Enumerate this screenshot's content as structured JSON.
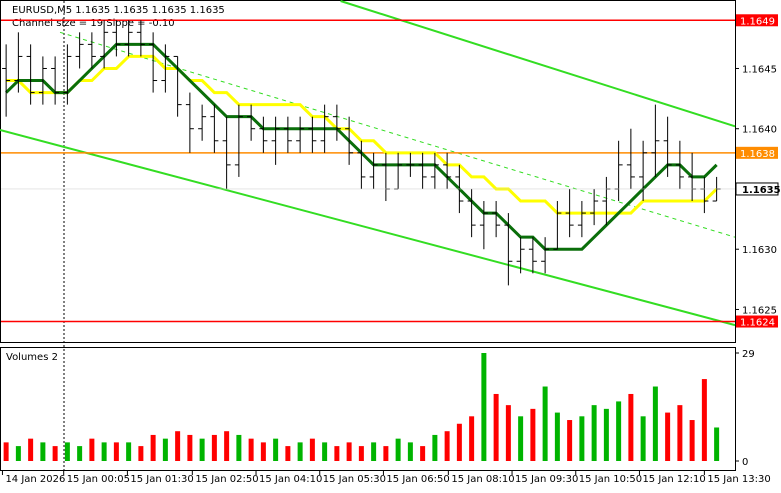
{
  "chart_data": {
    "type": "ohlc",
    "title": "EURUSD,M5  1.1635 1.1635 1.1635 1.1635",
    "subtitle": "Channel size = 19 Slope = -0.10",
    "xlim": [
      0,
      60
    ],
    "xticks": [
      {
        "value": 0.2,
        "label": "14 Jan 2026"
      },
      {
        "value": 5.2,
        "label": "15 Jan 00:05"
      },
      {
        "value": 10.4,
        "label": "15 Jan 01:30"
      },
      {
        "value": 15.7,
        "label": "15 Jan 02:50"
      },
      {
        "value": 20.9,
        "label": "15 Jan 04:10"
      },
      {
        "value": 26.1,
        "label": "15 Jan 05:30"
      },
      {
        "value": 31.3,
        "label": "15 Jan 06:50"
      },
      {
        "value": 36.6,
        "label": "15 Jan 08:10"
      },
      {
        "value": 41.8,
        "label": "15 Jan 09:30"
      },
      {
        "value": 47.0,
        "label": "15 Jan 10:50"
      },
      {
        "value": 52.2,
        "label": "15 Jan 12:10"
      },
      {
        "value": 57.5,
        "label": "15 Jan 13:30"
      }
    ],
    "ylim": [
      1.16223,
      1.16506
    ],
    "yticks": [
      1.1625,
      {
        "value": 1.163,
        "label": "1.1630"
      },
      {
        "value": 1.164,
        "label": "1.1640"
      },
      1.1645
    ],
    "last_price": 1.1635,
    "levels": [
      {
        "value": 1.1649,
        "color": "#ff0000"
      },
      {
        "value": 1.1638,
        "color": "#ff8c00"
      },
      {
        "value": 1.1624,
        "color": "#ff0000"
      }
    ],
    "open": [
      1.1645,
      1.1644,
      1.1646,
      1.1643,
      1.1645,
      1.1643,
      1.1646,
      1.1647,
      1.1646,
      1.1648,
      1.1647,
      1.1648,
      1.1647,
      1.1644,
      1.1646,
      1.1642,
      1.164,
      1.1641,
      1.1639,
      1.1637,
      1.1641,
      1.164,
      1.1639,
      1.164,
      1.1639,
      1.164,
      1.1639,
      1.1641,
      1.164,
      1.1638,
      1.1636,
      1.1637,
      1.1635,
      1.1637,
      1.1637,
      1.1636,
      1.1637,
      1.1636,
      1.1634,
      1.1632,
      1.1633,
      1.1632,
      1.1629,
      1.163,
      1.1629,
      1.163,
      1.1633,
      1.1632,
      1.1633,
      1.1634,
      1.1635,
      1.1637,
      1.1636,
      1.1638,
      1.1639,
      1.1637,
      1.1636,
      1.1635,
      1.1634
    ],
    "high": [
      1.1647,
      1.1648,
      1.1647,
      1.1646,
      1.1646,
      1.1647,
      1.1648,
      1.1648,
      1.1649,
      1.1649,
      1.1649,
      1.1649,
      1.1648,
      1.1647,
      1.1646,
      1.1643,
      1.1642,
      1.1642,
      1.1641,
      1.1642,
      1.1642,
      1.1641,
      1.1641,
      1.1641,
      1.1641,
      1.1641,
      1.1642,
      1.1642,
      1.1641,
      1.1639,
      1.1638,
      1.1638,
      1.1638,
      1.1638,
      1.1638,
      1.1638,
      1.1638,
      1.1637,
      1.1635,
      1.1634,
      1.1634,
      1.1633,
      1.1631,
      1.1631,
      1.1631,
      1.1634,
      1.1635,
      1.1634,
      1.1635,
      1.1636,
      1.1639,
      1.164,
      1.1639,
      1.1642,
      1.1641,
      1.1639,
      1.1638,
      1.1636,
      1.1636
    ],
    "low": [
      1.1641,
      1.1643,
      1.1642,
      1.1642,
      1.1642,
      1.1642,
      1.1645,
      1.1645,
      1.1645,
      1.1646,
      1.1646,
      1.1646,
      1.1643,
      1.1643,
      1.1641,
      1.1638,
      1.1639,
      1.1638,
      1.1635,
      1.1636,
      1.1639,
      1.1638,
      1.1637,
      1.1638,
      1.1638,
      1.1638,
      1.1638,
      1.1639,
      1.1637,
      1.1635,
      1.1635,
      1.1634,
      1.1635,
      1.1636,
      1.1635,
      1.1635,
      1.1635,
      1.1633,
      1.1631,
      1.163,
      1.1631,
      1.1627,
      1.1628,
      1.1628,
      1.1628,
      1.163,
      1.1631,
      1.1631,
      1.1632,
      1.1632,
      1.1634,
      1.1635,
      1.1634,
      1.1636,
      1.1636,
      1.1635,
      1.1634,
      1.1633,
      1.1634
    ],
    "close": [
      1.1644,
      1.1646,
      1.1643,
      1.1645,
      1.1643,
      1.1646,
      1.1647,
      1.1646,
      1.1648,
      1.1647,
      1.1648,
      1.1647,
      1.1644,
      1.1646,
      1.1642,
      1.164,
      1.1641,
      1.1639,
      1.1637,
      1.1641,
      1.164,
      1.1639,
      1.164,
      1.1639,
      1.164,
      1.1639,
      1.1641,
      1.164,
      1.1638,
      1.1636,
      1.1637,
      1.1635,
      1.1637,
      1.1637,
      1.1636,
      1.1637,
      1.1636,
      1.1634,
      1.1632,
      1.1633,
      1.1632,
      1.1629,
      1.163,
      1.1629,
      1.163,
      1.1633,
      1.1632,
      1.1633,
      1.1634,
      1.1635,
      1.1637,
      1.1636,
      1.1638,
      1.1639,
      1.1637,
      1.1636,
      1.1635,
      1.1634,
      1.1635
    ],
    "averages": [
      {
        "color": "#ffff00",
        "values": [
          1.1644,
          1.1644,
          1.1643,
          1.1643,
          1.1643,
          1.1643,
          1.1644,
          1.1644,
          1.1645,
          1.1645,
          1.1646,
          1.1646,
          1.1646,
          1.1645,
          1.1645,
          1.1644,
          1.1644,
          1.1643,
          1.1643,
          1.1642,
          1.1642,
          1.1642,
          1.1642,
          1.1642,
          1.1642,
          1.1641,
          1.1641,
          1.164,
          1.164,
          1.1639,
          1.1639,
          1.1638,
          1.1638,
          1.1638,
          1.1638,
          1.1638,
          1.1637,
          1.1637,
          1.1636,
          1.1636,
          1.1635,
          1.1635,
          1.1634,
          1.1634,
          1.1634,
          1.1633,
          1.1633,
          1.1633,
          1.1633,
          1.1633,
          1.1633,
          1.1633,
          1.1634,
          1.1634,
          1.1634,
          1.1634,
          1.1634,
          1.1634,
          1.1635
        ]
      },
      {
        "color": "#0a6e0a",
        "values": [
          1.1643,
          1.1644,
          1.1644,
          1.1644,
          1.1643,
          1.1643,
          1.1644,
          1.1645,
          1.1646,
          1.1647,
          1.1647,
          1.1647,
          1.1647,
          1.1646,
          1.1645,
          1.1644,
          1.1643,
          1.1642,
          1.1641,
          1.1641,
          1.1641,
          1.164,
          1.164,
          1.164,
          1.164,
          1.164,
          1.164,
          1.164,
          1.1639,
          1.1638,
          1.1637,
          1.1637,
          1.1637,
          1.1637,
          1.1637,
          1.1637,
          1.1636,
          1.1635,
          1.1634,
          1.1633,
          1.1633,
          1.1632,
          1.1631,
          1.1631,
          1.163,
          1.163,
          1.163,
          1.163,
          1.1631,
          1.1632,
          1.1633,
          1.1634,
          1.1635,
          1.1636,
          1.1637,
          1.1637,
          1.1636,
          1.1636,
          1.1637
        ]
      }
    ],
    "channel": {
      "color": "#33dd22",
      "lines": [
        {
          "x": [
            27.8,
            60
          ],
          "values": [
            1.16506,
            1.16402
          ],
          "dash": false
        },
        {
          "x": [
            0,
            60
          ],
          "values": [
            1.16399,
            1.16237
          ],
          "dash": false
        },
        {
          "x": [
            4.9,
            60
          ],
          "values": [
            1.1648,
            1.1631
          ],
          "dash": true
        }
      ]
    },
    "volumes": {
      "title": "Volumes 2",
      "ylim": [
        0,
        29
      ],
      "yticks": [
        0,
        29
      ],
      "up_color": "#00b400",
      "down_color": "#ff0000",
      "values": [
        5,
        4,
        6,
        5,
        4,
        5,
        4,
        6,
        5,
        5,
        5,
        4,
        7,
        6,
        8,
        7,
        6,
        7,
        8,
        7,
        6,
        5,
        6,
        4,
        5,
        6,
        5,
        4,
        5,
        4,
        5,
        4,
        6,
        5,
        4,
        7,
        8,
        10,
        12,
        29,
        18,
        15,
        12,
        14,
        20,
        13,
        11,
        12,
        15,
        14,
        16,
        18,
        12,
        20,
        13,
        15,
        11,
        22,
        9
      ]
    }
  }
}
